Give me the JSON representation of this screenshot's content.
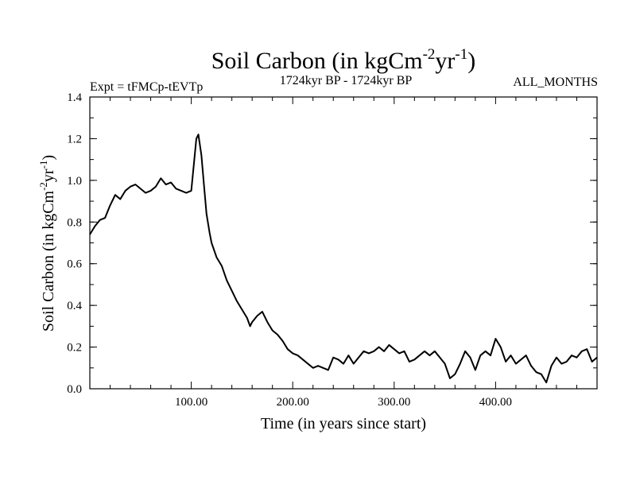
{
  "chart_data": {
    "type": "line",
    "title_main": "Soil Carbon (in kgCm",
    "title_exp1": "-2",
    "title_mid": "yr",
    "title_exp2": "-1",
    "title_end": ")",
    "subtitle_left": "Expt = tFMCp-tEVTp",
    "subtitle_center": "1724kyr BP - 1724kyr BP",
    "subtitle_right": "ALL_MONTHS",
    "xlabel": "Time (in years since start)",
    "ylabel_main": "Soil Carbon (in kgCm",
    "ylabel_exp1": "-2",
    "ylabel_mid": "yr",
    "ylabel_exp2": "-1",
    "ylabel_end": ")",
    "xlim": [
      0,
      500
    ],
    "ylim": [
      0,
      1.4
    ],
    "x_ticks": [
      100,
      200,
      300,
      400
    ],
    "x_tick_labels": [
      "100.00",
      "200.00",
      "300.00",
      "400.00"
    ],
    "y_ticks": [
      0,
      0.2,
      0.4,
      0.6,
      0.8,
      1.0,
      1.2,
      1.4
    ],
    "y_tick_labels": [
      "0.0",
      "0.2",
      "0.4",
      "0.6",
      "0.8",
      "1.0",
      "1.2",
      "1.4"
    ],
    "grid": false,
    "line_color": "#000000",
    "series": [
      {
        "x": [
          0,
          5,
          10,
          15,
          20,
          25,
          30,
          35,
          40,
          45,
          50,
          55,
          60,
          65,
          70,
          75,
          80,
          85,
          90,
          95,
          100,
          103,
          105,
          107,
          110,
          113,
          115,
          118,
          120,
          125,
          130,
          135,
          140,
          145,
          150,
          155,
          158,
          160,
          165,
          170,
          175,
          180,
          185,
          190,
          195,
          200,
          205,
          210,
          215,
          220,
          225,
          230,
          235,
          240,
          245,
          250,
          255,
          260,
          265,
          270,
          275,
          280,
          285,
          290,
          295,
          300,
          305,
          310,
          315,
          320,
          325,
          330,
          335,
          340,
          345,
          350,
          355,
          360,
          365,
          370,
          375,
          380,
          385,
          390,
          395,
          400,
          405,
          410,
          415,
          420,
          425,
          430,
          435,
          440,
          445,
          450,
          455,
          460,
          465,
          470,
          475,
          480,
          485,
          490,
          495,
          500
        ],
        "y": [
          0.74,
          0.78,
          0.81,
          0.82,
          0.88,
          0.93,
          0.91,
          0.95,
          0.97,
          0.98,
          0.96,
          0.94,
          0.95,
          0.97,
          1.01,
          0.98,
          0.99,
          0.96,
          0.95,
          0.94,
          0.95,
          1.1,
          1.2,
          1.22,
          1.12,
          0.95,
          0.84,
          0.75,
          0.7,
          0.63,
          0.59,
          0.52,
          0.47,
          0.42,
          0.38,
          0.34,
          0.3,
          0.32,
          0.35,
          0.37,
          0.32,
          0.28,
          0.26,
          0.23,
          0.19,
          0.17,
          0.16,
          0.14,
          0.12,
          0.1,
          0.11,
          0.1,
          0.09,
          0.15,
          0.14,
          0.12,
          0.16,
          0.12,
          0.15,
          0.18,
          0.17,
          0.18,
          0.2,
          0.18,
          0.21,
          0.19,
          0.17,
          0.18,
          0.13,
          0.14,
          0.16,
          0.18,
          0.16,
          0.18,
          0.15,
          0.12,
          0.05,
          0.07,
          0.12,
          0.18,
          0.15,
          0.09,
          0.16,
          0.18,
          0.16,
          0.24,
          0.2,
          0.13,
          0.16,
          0.12,
          0.14,
          0.16,
          0.11,
          0.08,
          0.07,
          0.03,
          0.11,
          0.15,
          0.12,
          0.13,
          0.16,
          0.15,
          0.18,
          0.19,
          0.13,
          0.15
        ]
      }
    ]
  }
}
